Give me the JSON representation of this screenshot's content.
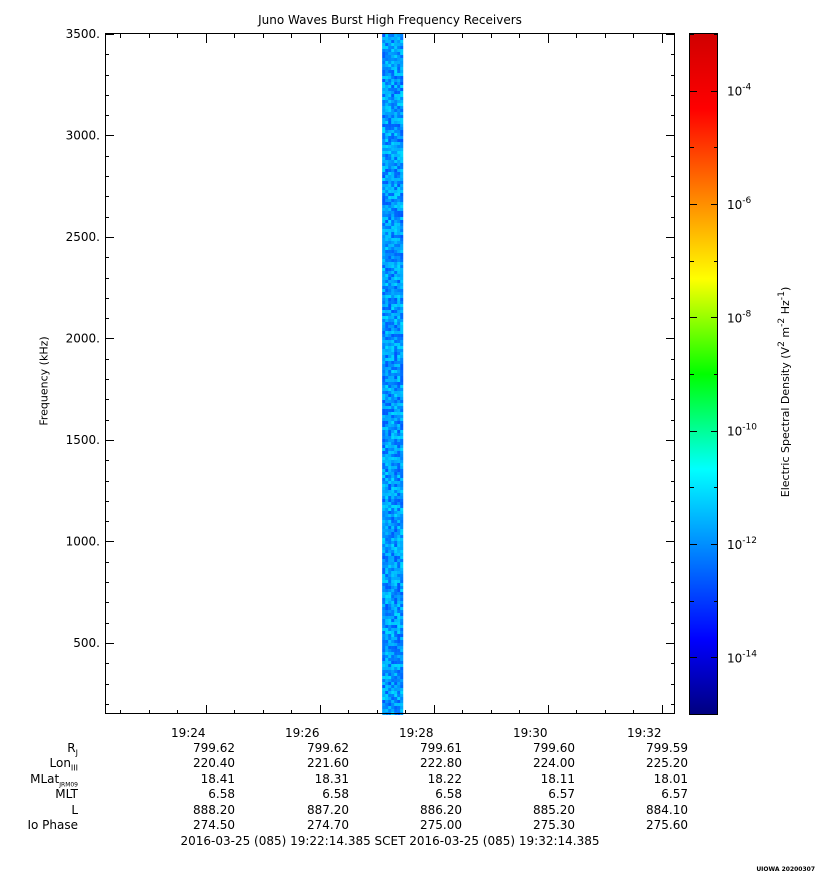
{
  "chart_data": {
    "type": "heatmap",
    "title": "Juno Waves Burst High Frequency Receivers",
    "ylabel": "Frequency (kHz)",
    "colorbar_label": "Electric Spectral Density (V2 m-2 Hz-1)",
    "colorbar_label_parts": {
      "base": "Electric Spectral Density (V",
      "sup1": "2",
      "mid1": " m",
      "sup2": "-2",
      "mid2": " Hz",
      "sup3": "-1",
      "end": ")"
    },
    "colorbar_log_range": [
      -15,
      -3
    ],
    "colorbar_ticks": [
      {
        "base": "10",
        "exp": "-4",
        "log": -4
      },
      {
        "base": "10",
        "exp": "-6",
        "log": -6
      },
      {
        "base": "10",
        "exp": "-8",
        "log": -8
      },
      {
        "base": "10",
        "exp": "-10",
        "log": -10
      },
      {
        "base": "10",
        "exp": "-12",
        "log": -12
      },
      {
        "base": "10",
        "exp": "-14",
        "log": -14
      }
    ],
    "ylim": [
      150,
      3500
    ],
    "y_ticks": [
      "500.",
      "1000.",
      "1500.",
      "2000.",
      "2500.",
      "3000.",
      "3500."
    ],
    "x_range_minutes": [
      1342.236,
      1352.236
    ],
    "x_ticks": [
      {
        "label": "19:24",
        "minutes": 1344
      },
      {
        "label": "19:26",
        "minutes": 1346
      },
      {
        "label": "19:28",
        "minutes": 1348
      },
      {
        "label": "19:30",
        "minutes": 1350
      },
      {
        "label": "19:32",
        "minutes": 1352
      }
    ],
    "data_block": {
      "x_start_min": 1347.1,
      "x_end_min": 1347.45,
      "f_start": 150,
      "f_end": 3500,
      "log_density_median": -11.8
    },
    "ephemeris": [
      {
        "label": "R",
        "sub": "J",
        "values": [
          "799.62",
          "799.62",
          "799.61",
          "799.60",
          "799.59"
        ]
      },
      {
        "label": "Lon",
        "sub": "III",
        "values": [
          "220.40",
          "221.60",
          "222.80",
          "224.00",
          "225.20"
        ]
      },
      {
        "label": "MLat",
        "sub": "JRM09",
        "values": [
          "18.41",
          "18.31",
          "18.22",
          "18.11",
          "18.01"
        ]
      },
      {
        "label": "MLT",
        "sub": "",
        "values": [
          "6.58",
          "6.58",
          "6.58",
          "6.57",
          "6.57"
        ]
      },
      {
        "label": "L",
        "sub": "",
        "values": [
          "888.20",
          "887.20",
          "886.20",
          "885.20",
          "884.10"
        ]
      },
      {
        "label": "Io Phase",
        "sub": "",
        "values": [
          "274.50",
          "274.70",
          "275.00",
          "275.30",
          "275.60"
        ]
      }
    ],
    "footer": "2016-03-25 (085) 19:22:14.385     SCET     2016-03-25 (085) 19:32:14.385",
    "stamp": "UIOWA 20200307"
  }
}
